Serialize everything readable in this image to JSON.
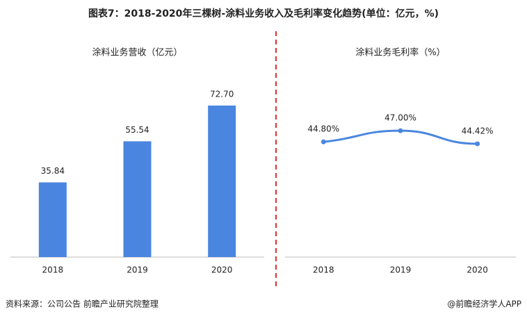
{
  "title": "图表7：2018-2020年三棵树-涂料业务收入及毛利率变化趋势(单位：亿元，%)",
  "source": "资料来源：公司公告 前瞻产业研究院整理",
  "credit": "@前瞻经济学人APP",
  "chart_data": [
    {
      "type": "bar",
      "title": "涂料业务营收（亿元）",
      "categories": [
        "2018",
        "2019",
        "2020"
      ],
      "values": [
        35.84,
        55.54,
        72.7
      ],
      "value_labels": [
        "35.84",
        "55.54",
        "72.70"
      ],
      "color": "#4a86e0",
      "ylim": [
        0,
        80
      ]
    },
    {
      "type": "line",
      "title": "涂料业务毛利率（%）",
      "categories": [
        "2018",
        "2019",
        "2020"
      ],
      "values": [
        44.8,
        47.0,
        44.42
      ],
      "value_labels": [
        "44.80%",
        "47.00%",
        "44.42%"
      ],
      "color": "#4a86e0",
      "ylim": [
        22,
        55
      ]
    }
  ]
}
